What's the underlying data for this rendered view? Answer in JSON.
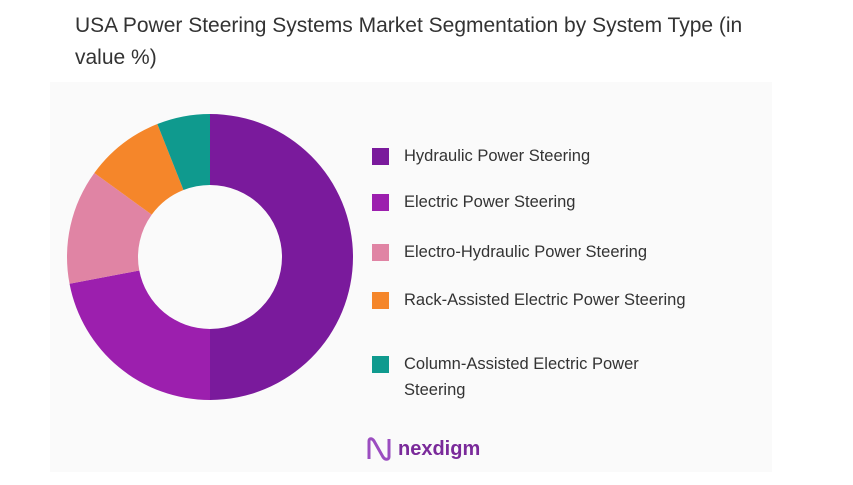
{
  "title": "USA Power Steering Systems Market Segmentation by System Type (in value %)",
  "chart_data": {
    "type": "pie",
    "subtype": "donut",
    "title": "USA Power Steering Systems Market Segmentation by System Type (in value %)",
    "legend": "right",
    "series": [
      {
        "name": "Hydraulic Power Steering",
        "value": 50,
        "color": "#7a1a9c"
      },
      {
        "name": "Electric Power Steering",
        "value": 22,
        "color": "#9c1fae"
      },
      {
        "name": "Electro-Hydraulic Power Steering",
        "value": 13,
        "color": "#e084a4"
      },
      {
        "name": "Rack-Assisted Electric Power Steering",
        "value": 9,
        "color": "#f5862a"
      },
      {
        "name": "Column-Assisted Electric Power Steering",
        "value": 6,
        "color": "#0f9a8e"
      }
    ]
  },
  "logo": {
    "text": "nexdigm"
  }
}
